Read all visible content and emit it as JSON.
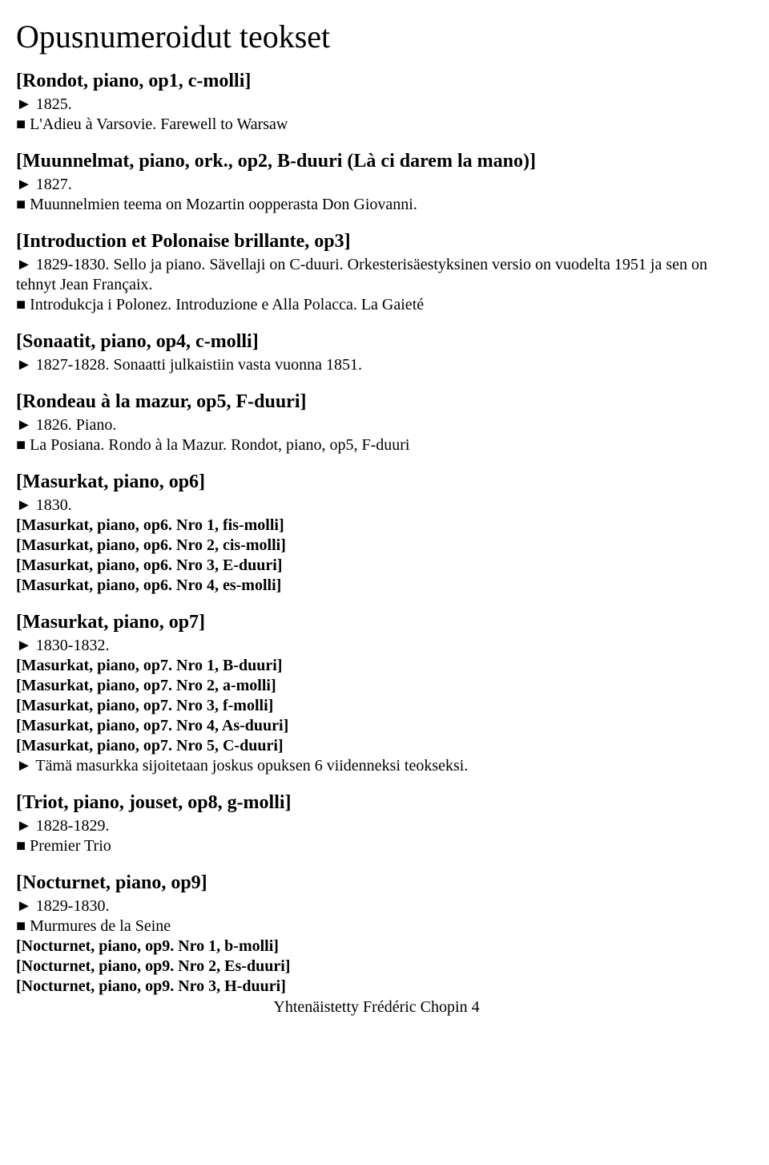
{
  "page_title": "Opusnumeroidut teokset",
  "footer": "Yhtenäistetty Frédéric Chopin  4",
  "colors": {
    "text": "#000000",
    "background": "#ffffff"
  },
  "typography": {
    "title_fontsize": 40,
    "heading_fontsize": 24,
    "body_fontsize": 20,
    "font_family": "Times New Roman"
  },
  "entries": [
    {
      "heading": "[Rondot, piano, op1, c-molli]",
      "lines": [
        "► 1825.",
        "■ L'Adieu à Varsovie. Farewell to Warsaw"
      ]
    },
    {
      "heading": "[Muunnelmat, piano, ork., op2, B-duuri (Là ci darem la mano)]",
      "lines": [
        "► 1827.",
        "■ Muunnelmien teema on Mozartin oopperasta Don Giovanni."
      ]
    },
    {
      "heading": "[Introduction et Polonaise brillante, op3]",
      "lines": [
        "► 1829-1830. Sello ja piano. Sävellaji on C-duuri. Orkesterisäestyksinen versio on vuodelta 1951 ja sen on tehnyt Jean Françaix.",
        "■ Introdukcja i Polonez. Introduzione e Alla Polacca. La Gaieté"
      ]
    },
    {
      "heading": "[Sonaatit, piano, op4, c-molli]",
      "lines": [
        "► 1827-1828. Sonaatti julkaistiin vasta vuonna 1851."
      ]
    },
    {
      "heading": "[Rondeau à la mazur, op5, F-duuri]",
      "lines": [
        "► 1826. Piano.",
        "■ La Posiana. Rondo à la Mazur. Rondot, piano, op5, F-duuri"
      ]
    },
    {
      "heading": "[Masurkat, piano, op6]",
      "lines": [
        "► 1830."
      ],
      "subs": [
        "[Masurkat, piano, op6. Nro 1, fis-molli]",
        "[Masurkat, piano, op6. Nro 2, cis-molli]",
        "[Masurkat, piano, op6. Nro 3, E-duuri]",
        "[Masurkat, piano, op6. Nro 4, es-molli]"
      ]
    },
    {
      "heading": "[Masurkat, piano, op7]",
      "lines": [
        "► 1830-1832."
      ],
      "subs": [
        "[Masurkat, piano, op7. Nro 1, B-duuri]",
        "[Masurkat, piano, op7. Nro 2, a-molli]",
        "[Masurkat, piano, op7. Nro 3, f-molli]",
        "[Masurkat, piano, op7. Nro 4, As-duuri]",
        "[Masurkat, piano, op7. Nro 5, C-duuri]"
      ],
      "trailing": [
        "► Tämä masurkka sijoitetaan joskus opuksen 6 viidenneksi teokseksi."
      ]
    },
    {
      "heading": "[Triot, piano, jouset, op8, g-molli]",
      "lines": [
        "► 1828-1829.",
        "■ Premier Trio"
      ]
    },
    {
      "heading": "[Nocturnet, piano, op9]",
      "lines": [
        "► 1829-1830.",
        "■ Murmures de la Seine"
      ],
      "subs": [
        "[Nocturnet, piano, op9. Nro 1, b-molli]",
        "[Nocturnet, piano, op9. Nro 2, Es-duuri]",
        "[Nocturnet, piano, op9. Nro 3, H-duuri]"
      ],
      "no_bottom_margin": true
    }
  ]
}
